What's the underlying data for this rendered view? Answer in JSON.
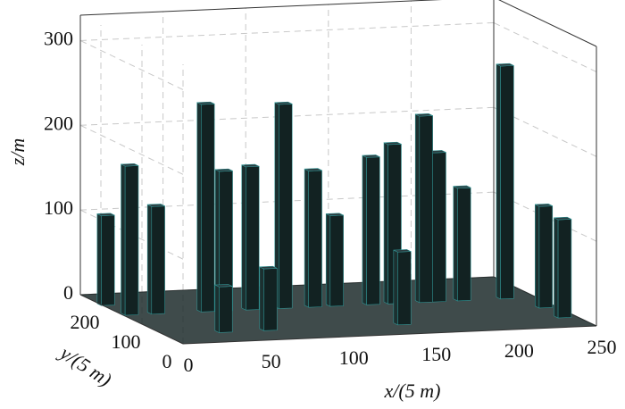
{
  "chart_data": {
    "type": "bar3d",
    "xlabel": "x/(5 m)",
    "ylabel": "y/(5 m)",
    "zlabel": "z/m",
    "xlim": [
      0,
      250
    ],
    "ylim": [
      0,
      250
    ],
    "zlim": [
      0,
      330
    ],
    "xticks": [
      0,
      50,
      100,
      150,
      200,
      250
    ],
    "yticks": [
      0,
      100,
      200
    ],
    "zticks": [
      0,
      100,
      200,
      300
    ],
    "grid": true,
    "color": "#122222",
    "edge_color": "#2f8f8f",
    "buildings": {
      "x": [
        3,
        5,
        21,
        51,
        62,
        78,
        98,
        116,
        129,
        151,
        164,
        183,
        191,
        206,
        232,
        243,
        242,
        64,
        145,
        37
      ],
      "y": [
        200,
        150,
        150,
        150,
        150,
        150,
        150,
        150,
        150,
        150,
        150,
        150,
        150,
        150,
        150,
        100,
        50,
        50,
        50,
        50
      ],
      "z": [
        106,
        176,
        127,
        245,
        165,
        169,
        241,
        161,
        107,
        174,
        188,
        220,
        176,
        133,
        275,
        120,
        116,
        73,
        86,
        54
      ]
    }
  }
}
